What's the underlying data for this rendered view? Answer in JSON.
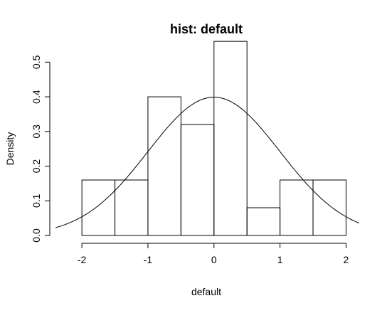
{
  "chart_data": {
    "type": "histogram",
    "title": "hist: default",
    "xlabel": "default",
    "ylabel": "Density",
    "xlim": [
      -2.4,
      2.2
    ],
    "ylim": [
      0,
      0.55
    ],
    "bins": [
      {
        "x0": -2.0,
        "x1": -1.5,
        "density": 0.16
      },
      {
        "x0": -1.5,
        "x1": -1.0,
        "density": 0.16
      },
      {
        "x0": -1.0,
        "x1": -0.5,
        "density": 0.4
      },
      {
        "x0": -0.5,
        "x1": 0.0,
        "density": 0.32
      },
      {
        "x0": 0.0,
        "x1": 0.5,
        "density": 0.56
      },
      {
        "x0": 0.5,
        "x1": 1.0,
        "density": 0.08
      },
      {
        "x0": 1.0,
        "x1": 1.5,
        "density": 0.16
      },
      {
        "x0": 1.5,
        "x1": 2.0,
        "density": 0.16
      }
    ],
    "overlay": {
      "type": "normal-density",
      "mean": 0,
      "sd": 1
    },
    "x_ticks": [
      -2,
      -1,
      0,
      1,
      2
    ],
    "x_tick_labels": [
      "-2",
      "-1",
      "0",
      "1",
      "2"
    ],
    "y_ticks": [
      0.0,
      0.1,
      0.2,
      0.3,
      0.4,
      0.5
    ],
    "y_tick_labels": [
      "0.0",
      "0.1",
      "0.2",
      "0.3",
      "0.4",
      "0.5"
    ],
    "grid": false
  }
}
